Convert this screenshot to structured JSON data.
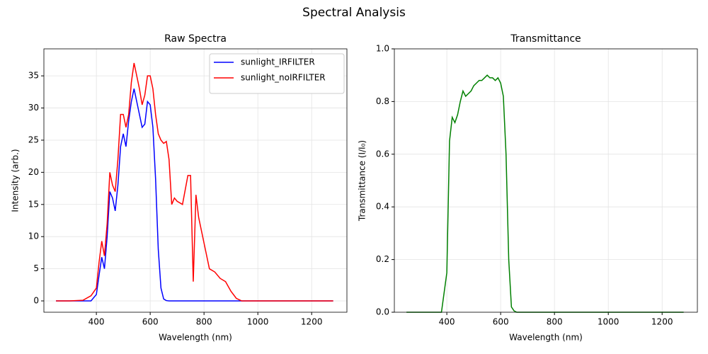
{
  "title": "Spectral Analysis",
  "chart_data": [
    {
      "type": "line",
      "title": "Raw Spectra",
      "x_label": "Wavelength (nm)",
      "y_label": "Intensity (arb.)",
      "x": [
        250,
        300,
        350,
        380,
        400,
        410,
        420,
        430,
        440,
        450,
        460,
        470,
        480,
        490,
        500,
        510,
        520,
        530,
        540,
        550,
        560,
        570,
        580,
        590,
        600,
        610,
        620,
        630,
        640,
        650,
        660,
        670,
        680,
        690,
        700,
        720,
        740,
        750,
        760,
        770,
        780,
        800,
        820,
        840,
        860,
        880,
        900,
        920,
        940,
        1000,
        1100,
        1200,
        1280
      ],
      "series": [
        {
          "name": "sunlight_IRFILTER",
          "color": "#0000ff",
          "values": [
            0,
            0,
            0,
            0,
            1,
            4,
            6.8,
            5,
            10,
            17,
            16,
            14,
            18,
            24,
            26,
            24,
            28,
            31,
            33,
            31,
            29,
            27,
            27.5,
            31,
            30.5,
            27,
            19,
            8,
            2,
            0.3,
            0.05,
            0,
            0,
            0,
            0,
            0,
            0,
            0,
            0,
            0,
            0,
            0,
            0,
            0,
            0,
            0,
            0,
            0,
            0,
            0,
            0,
            0,
            0
          ]
        },
        {
          "name": "sunlight_noIRFILTER",
          "color": "#ff0000",
          "values": [
            0,
            0,
            0.1,
            0.8,
            2,
            6,
            9.3,
            7,
            12,
            20,
            18,
            17,
            22,
            29,
            29,
            27,
            29,
            34,
            37,
            35,
            33,
            30.5,
            32,
            35,
            35,
            33,
            29,
            26,
            25,
            24.5,
            24.8,
            22,
            15,
            16,
            15.5,
            15,
            19.5,
            19.5,
            3,
            16.5,
            13,
            9,
            5,
            4.5,
            3.5,
            3,
            1.5,
            0.4,
            0,
            0,
            0,
            0,
            0
          ]
        }
      ],
      "xlim": [
        205,
        1331
      ],
      "ylim": [
        -1.76,
        39.2
      ],
      "xticks": [
        400,
        600,
        800,
        1000,
        1200
      ],
      "yticks": [
        0,
        5,
        10,
        15,
        20,
        25,
        30,
        35
      ],
      "grid": true,
      "legend": "upper right"
    },
    {
      "type": "line",
      "title": "Transmittance",
      "x_label": "Wavelength (nm)",
      "y_label": "Transmittance (I/I₀)",
      "x": [
        250,
        300,
        350,
        380,
        400,
        410,
        420,
        430,
        440,
        450,
        460,
        470,
        480,
        490,
        500,
        510,
        520,
        530,
        540,
        550,
        560,
        570,
        580,
        590,
        600,
        610,
        620,
        630,
        640,
        650,
        660,
        670,
        680,
        690,
        700,
        720,
        740,
        750,
        760,
        770,
        780,
        800,
        820,
        840,
        860,
        880,
        900,
        920,
        940,
        1000,
        1100,
        1200,
        1280
      ],
      "series": [
        {
          "color": "#008000",
          "values": [
            0,
            0,
            0,
            0,
            0.15,
            0.65,
            0.74,
            0.72,
            0.75,
            0.8,
            0.84,
            0.82,
            0.83,
            0.84,
            0.86,
            0.87,
            0.88,
            0.88,
            0.89,
            0.9,
            0.89,
            0.89,
            0.88,
            0.89,
            0.87,
            0.82,
            0.6,
            0.2,
            0.02,
            0.005,
            0,
            0,
            0,
            0,
            0,
            0,
            0,
            0,
            0,
            0,
            0,
            0,
            0,
            0,
            0,
            0,
            0,
            0,
            0,
            0,
            0,
            0,
            0
          ]
        }
      ],
      "xlim": [
        205,
        1331
      ],
      "ylim": [
        0,
        1
      ],
      "xticks": [
        400,
        600,
        800,
        1000,
        1200
      ],
      "yticks": [
        {
          "value": 0,
          "label": "0.0"
        },
        {
          "value": 0.2,
          "label": "0.2"
        },
        {
          "value": 0.4,
          "label": "0.4"
        },
        {
          "value": 0.6,
          "label": "0.6"
        },
        {
          "value": 0.8,
          "label": "0.8"
        },
        {
          "value": 1,
          "label": "1.0"
        }
      ],
      "grid": true
    }
  ]
}
